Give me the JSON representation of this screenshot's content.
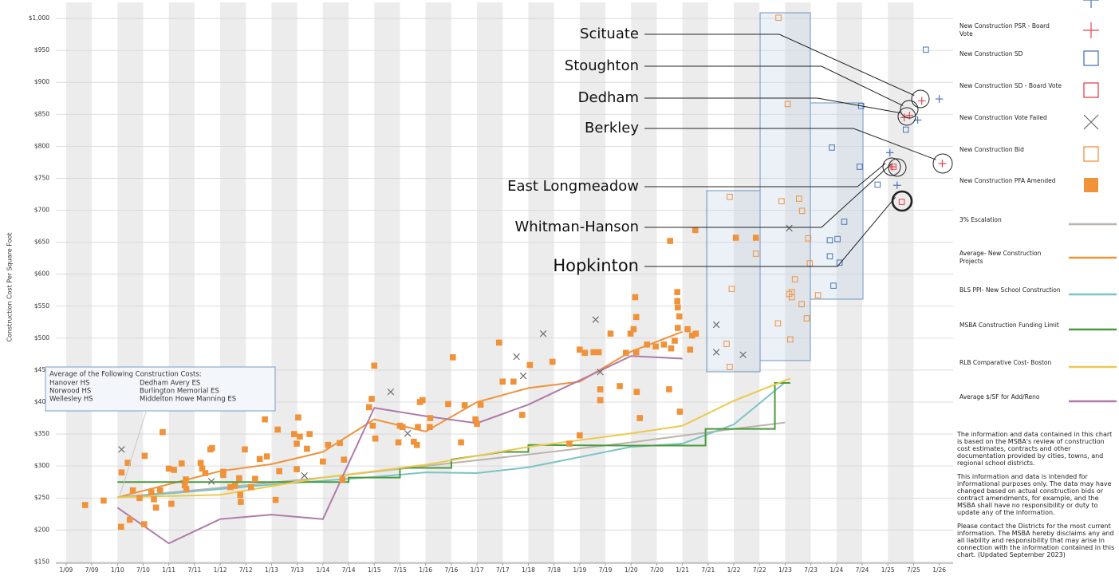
{
  "chart_data": {
    "type": "scatter",
    "y_label": "Construction Cost Per Square Foot",
    "xlim": [
      2008.8,
      2026.27
    ],
    "ylim": [
      148,
      1025
    ],
    "grid": true,
    "bands": true,
    "xticks": [
      {
        "value": 2009,
        "label": "1/09"
      },
      {
        "value": 2009.5,
        "label": "7/09"
      },
      {
        "value": 2010,
        "label": "1/10"
      },
      {
        "value": 2010.5,
        "label": "7/10"
      },
      {
        "value": 2011,
        "label": "1/11"
      },
      {
        "value": 2011.5,
        "label": "7/11"
      },
      {
        "value": 2012,
        "label": "1/12"
      },
      {
        "value": 2012.5,
        "label": "7/12"
      },
      {
        "value": 2013,
        "label": "1/13"
      },
      {
        "value": 2013.5,
        "label": "7/13"
      },
      {
        "value": 2014,
        "label": "1/14"
      },
      {
        "value": 2014.5,
        "label": "7/14"
      },
      {
        "value": 2015,
        "label": "1/15"
      },
      {
        "value": 2015.5,
        "label": "7/15"
      },
      {
        "value": 2016,
        "label": "1/16"
      },
      {
        "value": 2016.5,
        "label": "7/16"
      },
      {
        "value": 2017,
        "label": "1/17"
      },
      {
        "value": 2017.5,
        "label": "7/17"
      },
      {
        "value": 2018,
        "label": "1/18"
      },
      {
        "value": 2018.5,
        "label": "7/18"
      },
      {
        "value": 2019,
        "label": "1/19"
      },
      {
        "value": 2019.5,
        "label": "7/19"
      },
      {
        "value": 2020,
        "label": "1/20"
      },
      {
        "value": 2020.5,
        "label": "7/20"
      },
      {
        "value": 2021,
        "label": "1/21"
      },
      {
        "value": 2021.5,
        "label": "7/21"
      },
      {
        "value": 2022,
        "label": "1/22"
      },
      {
        "value": 2022.5,
        "label": "7/22"
      },
      {
        "value": 2023,
        "label": "1/23"
      },
      {
        "value": 2023.5,
        "label": "7/23"
      },
      {
        "value": 2024,
        "label": "1/24"
      },
      {
        "value": 2024.5,
        "label": "7/24"
      },
      {
        "value": 2025,
        "label": "1/25"
      },
      {
        "value": 2025.5,
        "label": "7/25"
      },
      {
        "value": 2026,
        "label": "1/26"
      }
    ],
    "yticks": [
      {
        "value": 150,
        "label": "$150"
      },
      {
        "value": 200,
        "label": "$200"
      },
      {
        "value": 250,
        "label": "$250"
      },
      {
        "value": 300,
        "label": "$300"
      },
      {
        "value": 350,
        "label": "$350"
      },
      {
        "value": 400,
        "label": "$400"
      },
      {
        "value": 450,
        "label": "$450"
      },
      {
        "value": 500,
        "label": "$500"
      },
      {
        "value": 550,
        "label": "$550"
      },
      {
        "value": 600,
        "label": "$600"
      },
      {
        "value": 650,
        "label": "$650"
      },
      {
        "value": 700,
        "label": "$700"
      },
      {
        "value": 750,
        "label": "$750"
      },
      {
        "value": 800,
        "label": "$800"
      },
      {
        "value": 850,
        "label": "$850"
      },
      {
        "value": 900,
        "label": "$900"
      },
      {
        "value": 950,
        "label": "$950"
      },
      {
        "value": 1000,
        "label": "$1,000"
      }
    ],
    "series": [
      {
        "name": "New Construction PSR",
        "type": "scatter",
        "marker": "plus",
        "color": "#4a76b5",
        "x": [
          2026.0,
          2025.04,
          2025.18,
          2025.58
        ],
        "values": [
          874,
          790,
          739,
          841
        ]
      },
      {
        "name": "New Construction PSR - Board Vote",
        "type": "scatter",
        "marker": "plus",
        "color": "#e0454f",
        "x": [
          2025.66,
          2025.32,
          2025.42,
          2026.06,
          2025.08
        ],
        "values": [
          871,
          845,
          848,
          773,
          768
        ]
      },
      {
        "name": "New Construction SD",
        "type": "scatter",
        "marker": "square",
        "color": "#4a76b5",
        "x": [
          2025.74,
          2025.35,
          2024.48,
          2023.91,
          2024.45,
          2024.8,
          2024.15,
          2023.87,
          2024.02,
          2023.87,
          2024.06,
          2023.94
        ],
        "values": [
          951,
          826,
          863,
          798,
          768,
          740,
          682,
          653,
          655,
          628,
          618,
          582
        ]
      },
      {
        "name": "New Construction SD - Board Vote",
        "type": "scatter",
        "marker": "square",
        "color": "#e0454f",
        "x": [
          2025.27,
          2025.11
        ],
        "values": [
          713,
          768
        ]
      },
      {
        "name": "New Construction Vote Failed",
        "type": "scatter",
        "marker": "x",
        "color": "#6b6b6b",
        "x": [
          2010.08,
          2011.83,
          2013.64,
          2015.32,
          2015.65,
          2017.77,
          2017.9,
          2018.29,
          2019.31,
          2019.4,
          2021.66,
          2021.66,
          2022.18,
          2023.08
        ],
        "values": [
          326,
          276,
          285,
          416,
          351,
          471,
          441,
          507,
          529,
          447,
          521,
          478,
          474,
          672
        ]
      },
      {
        "name": "New Construction Bid",
        "type": "scatter",
        "marker": "square",
        "color": "#f0923a",
        "x": [
          2021.92,
          2021.96,
          2021.86,
          2021.92,
          2022.43,
          2022.87,
          2023.05,
          2022.86,
          2022.93,
          2023.27,
          2023.33,
          2023.08,
          2023.13,
          2023.19,
          2023.13,
          2023.32,
          2023.42,
          2023.1,
          2023.45,
          2023.48,
          2023.64
        ],
        "values": [
          721,
          577,
          491,
          455,
          632,
          1001,
          866,
          523,
          714,
          718,
          699,
          569,
          564,
          592,
          572,
          553,
          531,
          498,
          656,
          617,
          567
        ]
      },
      {
        "name": "New Construction PFA Amended",
        "type": "scatter",
        "marker": "square-filled",
        "color": "#f0923a",
        "x": [
          2009.37,
          2009.73,
          2010.07,
          2010.08,
          2010.2,
          2010.24,
          2010.3,
          2010.43,
          2010.52,
          2010.53,
          2010.66,
          2010.71,
          2010.75,
          2010.83,
          2010.88,
          2011.0,
          2011.05,
          2011.1,
          2011.25,
          2011.31,
          2011.33,
          2011.34,
          2011.62,
          2011.65,
          2011.71,
          2011.81,
          2011.84,
          2012.06,
          2012.06,
          2012.2,
          2012.29,
          2012.37,
          2012.39,
          2012.4,
          2012.48,
          2012.68,
          2012.6,
          2012.77,
          2012.87,
          2012.91,
          2013.08,
          2013.12,
          2013.15,
          2013.44,
          2013.49,
          2013.49,
          2013.52,
          2013.55,
          2013.69,
          2013.74,
          2014.0,
          2014.1,
          2014.33,
          2014.38,
          2014.41,
          2014.9,
          2014.95,
          2015.0,
          2015.02,
          2014.97,
          2015.47,
          2015.5,
          2015.55,
          2015.77,
          2015.85,
          2015.89,
          2015.94,
          2015.83,
          2016.08,
          2016.09,
          2016.44,
          2016.53,
          2016.69,
          2016.76,
          2016.97,
          2017.0,
          2017.07,
          2017.43,
          2017.5,
          2017.71,
          2017.88,
          2018.03,
          2018.47,
          2018.8,
          2019.0,
          2019.0,
          2019.1,
          2019.27,
          2019.37,
          2019.4,
          2019.4,
          2019.6,
          2019.78,
          2019.9,
          2019.99,
          2020.05,
          2020.08,
          2020.1,
          2020.1,
          2020.11,
          2020.17,
          2020.31,
          2020.48,
          2020.64,
          2020.74,
          2020.78,
          2020.76,
          2020.85,
          2020.9,
          2020.9,
          2020.91,
          2020.94,
          2020.91,
          2020.95,
          2021.1,
          2021.15,
          2021.19,
          2021.26,
          2021.25,
          2022.04,
          2022.43
        ],
        "values": [
          239,
          246,
          205,
          290,
          305,
          216,
          262,
          250,
          209,
          316,
          259,
          248,
          235,
          262,
          353,
          296,
          241,
          294,
          304,
          270,
          279,
          264,
          305,
          296,
          289,
          326,
          328,
          286,
          291,
          267,
          269,
          281,
          255,
          244,
          326,
          280,
          267,
          311,
          373,
          315,
          247,
          357,
          292,
          350,
          335,
          295,
          376,
          346,
          327,
          350,
          307,
          333,
          336,
          279,
          310,
          392,
          405,
          457,
          343,
          363,
          337,
          363,
          361,
          338,
          361,
          400,
          403,
          333,
          361,
          375,
          397,
          470,
          337,
          395,
          373,
          366,
          396,
          493,
          432,
          432,
          380,
          458,
          463,
          335,
          348,
          482,
          477,
          478,
          478,
          403,
          420,
          507,
          425,
          477,
          507,
          514,
          564,
          533,
          478,
          416,
          375,
          490,
          487,
          490,
          420,
          484,
          652,
          496,
          572,
          558,
          548,
          534,
          516,
          385,
          514,
          482,
          504,
          507,
          669,
          657,
          657
        ]
      },
      {
        "name": "3% Escalation",
        "type": "line",
        "color": "#bdb3ad",
        "x": [
          2010,
          2012,
          2014,
          2016,
          2018,
          2020,
          2022,
          2023
        ],
        "values": [
          251,
          266,
          282,
          300,
          318,
          337,
          358,
          368
        ]
      },
      {
        "name": "Average- New Construction Projects",
        "type": "line",
        "color": "#f0923a",
        "x": [
          2010,
          2012,
          2013,
          2014,
          2015,
          2016,
          2017,
          2018,
          2019,
          2020,
          2021
        ],
        "values": [
          251,
          292,
          303,
          322,
          373,
          354,
          400,
          422,
          432,
          479,
          510
        ]
      },
      {
        "name": "BLS PPI- New School Construction",
        "type": "line",
        "color": "#7cc3c4",
        "x": [
          2010,
          2011,
          2013,
          2015,
          2016,
          2017,
          2018,
          2020,
          2021,
          2022,
          2023
        ],
        "values": [
          251,
          257,
          271,
          283,
          290,
          289,
          298,
          330,
          335,
          365,
          431
        ]
      },
      {
        "name": "MSBA Construction Funding Limit",
        "type": "line",
        "color": "#4a9a3c",
        "x": [
          2010,
          2014.5,
          2014.5,
          2015.5,
          2015.5,
          2016.5,
          2016.5,
          2017.5,
          2018,
          2018,
          2020,
          2021.45,
          2021.45,
          2022.8,
          2022.8,
          2023.1
        ],
        "values": [
          275,
          275,
          282,
          282,
          297,
          297,
          310,
          322,
          322,
          333,
          332,
          332,
          358,
          358,
          430,
          430
        ]
      },
      {
        "name": "RLB Comparative Cost- Boston",
        "type": "line",
        "color": "#ecc94b",
        "x": [
          2010,
          2012,
          2014,
          2016,
          2018,
          2020,
          2021,
          2022,
          2023.1
        ],
        "values": [
          251,
          255,
          282,
          302,
          330,
          351,
          363,
          402,
          437
        ]
      },
      {
        "name": "Average $/SF for Add/Reno",
        "type": "line",
        "color": "#b07aa8",
        "x": [
          2010,
          2011,
          2012,
          2013,
          2014,
          2015,
          2016,
          2017,
          2018,
          2020,
          2021
        ],
        "values": [
          235,
          179,
          217,
          224,
          217,
          391,
          378,
          367,
          396,
          472,
          468
        ]
      }
    ],
    "annotations": [
      "Scituate",
      "Stoughton",
      "Dedham",
      "Berkley",
      "East Longmeadow",
      "Whitman-Hanson",
      "Hopkinton"
    ],
    "note_box": {
      "title": "Average of the Following Construction Costs:",
      "items": [
        "Hanover HS",
        "Dedham Avery ES",
        "Norwood HS",
        "Burlington Memorial ES",
        "Wellesley HS",
        "Middelton Howe Manning ES"
      ]
    },
    "notes": [
      "The information and data contained in this chart is based on the MSBA's review of construction cost estimates, contracts and other documentation provided by cities, towns, and regional school districts.",
      "This information and data is intended for informational purposes only. The data may have changed based on actual construction bids or contract amendments, for example, and the MSBA shall have no responsibility or duty to update any of the information.",
      "Please contact the Districts for the most current information. The MSBA hereby disclaims any and all liability and responsibility that may arise in connection with the information contained in this chart. (Updated September 2023)"
    ]
  }
}
